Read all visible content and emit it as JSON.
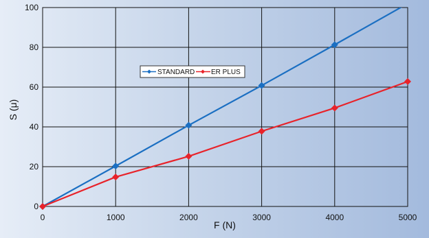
{
  "chart_data": {
    "type": "line",
    "title": "",
    "xlabel": "F (N)",
    "ylabel": "S (μ)",
    "xlim": [
      0,
      5000
    ],
    "ylim": [
      0,
      100
    ],
    "x_ticks": [
      "0",
      "1000",
      "2000",
      "3000",
      "4000",
      "5000"
    ],
    "y_ticks": [
      "0",
      "20",
      "40",
      "60",
      "80",
      "100"
    ],
    "grid": true,
    "legend_position": "upper-middle",
    "series": [
      {
        "name": "STANDARD",
        "color": "#1b6fc2",
        "marker": "diamond",
        "x": [
          0,
          1000,
          2000,
          3000,
          4000,
          5000
        ],
        "y": [
          0,
          20.3,
          40.8,
          60.8,
          81.3,
          102
        ]
      },
      {
        "name": "ER PLUS",
        "color": "#e8232a",
        "marker": "diamond",
        "x": [
          0,
          1000,
          2000,
          3000,
          4000,
          5000
        ],
        "y": [
          0,
          14.8,
          25.2,
          37.8,
          49.5,
          62.8
        ]
      }
    ]
  }
}
